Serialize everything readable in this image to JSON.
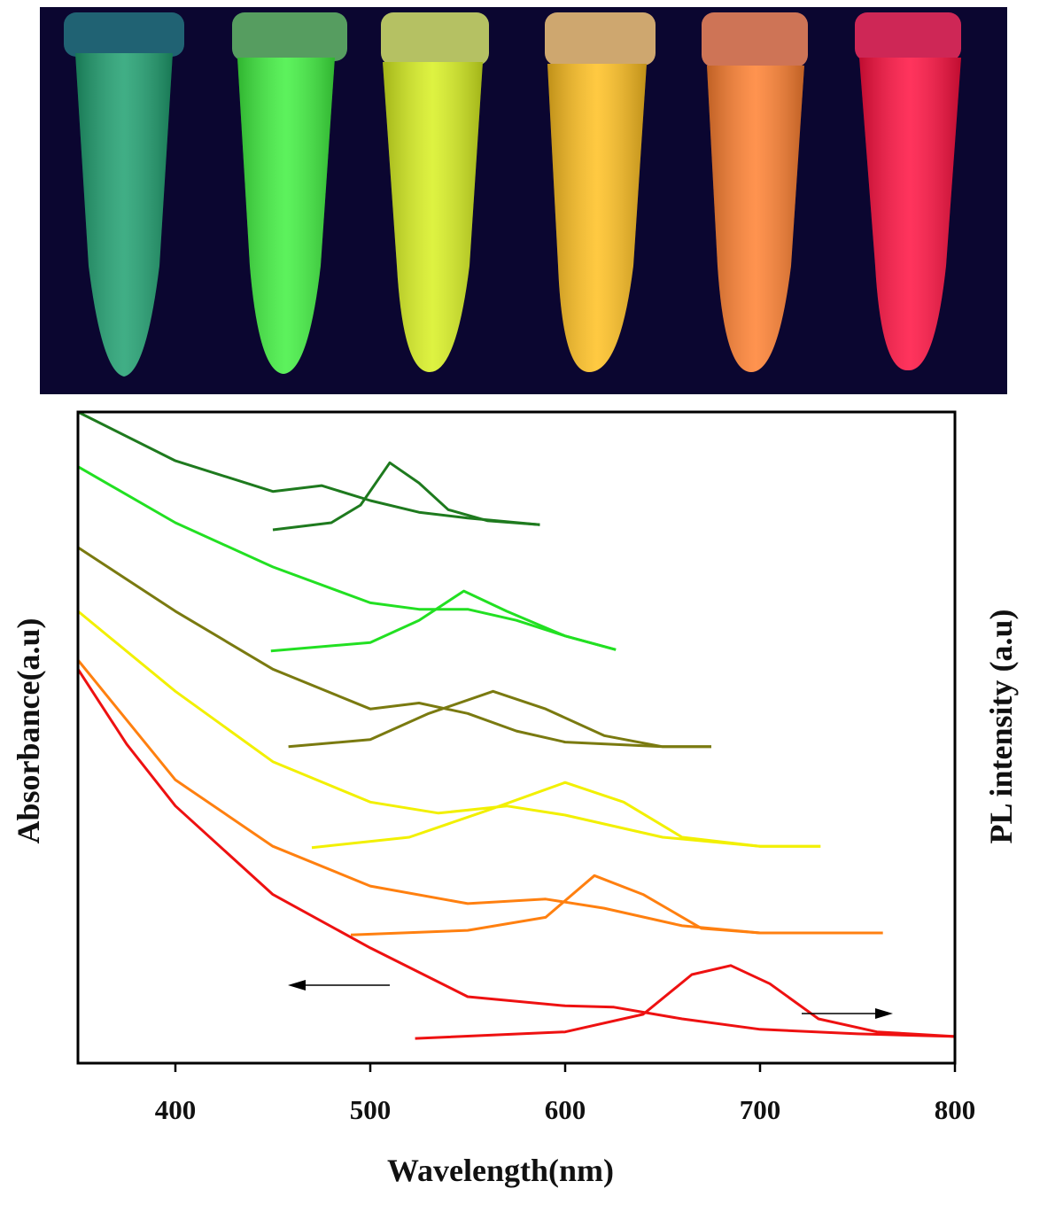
{
  "chart_data": {
    "type": "line",
    "x_label": "Wavelength(nm)",
    "y_label": "Absorbance(a.u)",
    "y2_label": "PL  intensity  (a.u)",
    "xlim": [
      350,
      800
    ],
    "xticks": [
      400,
      500,
      600,
      700,
      800
    ],
    "ylim": [
      0,
      100
    ],
    "series": [
      {
        "color": "#1e7a1e",
        "x": [
          350,
          400,
          450,
          475,
          500,
          525,
          550,
          587
        ],
        "values": [
          100,
          92.5,
          87.8,
          88.7,
          86.4,
          84.6,
          83.7,
          82.7
        ]
      },
      {
        "color": "#1e7a1e",
        "x": [
          450,
          480,
          495,
          510,
          525,
          540,
          560,
          587
        ],
        "values": [
          81.9,
          83,
          85.7,
          92.2,
          89.1,
          85,
          83.3,
          82.7
        ]
      },
      {
        "color": "#22e022",
        "x": [
          350,
          400,
          450,
          500,
          525,
          550,
          575,
          600,
          626
        ],
        "values": [
          91.6,
          83,
          76.2,
          70.7,
          69.7,
          69.7,
          68,
          65.6,
          63.5
        ]
      },
      {
        "color": "#22e022",
        "x": [
          449,
          500,
          525,
          548,
          570,
          600,
          626
        ],
        "values": [
          63.3,
          64.6,
          68,
          72.5,
          69.4,
          65.6,
          63.5
        ]
      },
      {
        "color": "#7a7a10",
        "x": [
          350,
          400,
          450,
          500,
          525,
          550,
          575,
          600,
          650,
          675
        ],
        "values": [
          79.2,
          69.4,
          60.5,
          54.4,
          55.3,
          53.7,
          51,
          49.3,
          48.6,
          48.6
        ]
      },
      {
        "color": "#7a7a10",
        "x": [
          458,
          500,
          530,
          563,
          590,
          620,
          650,
          675
        ],
        "values": [
          48.6,
          49.7,
          53.7,
          57.1,
          54.4,
          50.3,
          48.6,
          48.6
        ]
      },
      {
        "color": "#f2f000",
        "x": [
          350,
          400,
          450,
          500,
          535,
          570,
          600,
          650,
          700,
          731
        ],
        "values": [
          69.4,
          57.1,
          46.3,
          40.1,
          38.4,
          39.5,
          38.1,
          34.7,
          33.3,
          33.3
        ]
      },
      {
        "color": "#f2f000",
        "x": [
          470,
          520,
          560,
          600,
          630,
          660,
          700,
          731
        ],
        "values": [
          33.1,
          34.7,
          38.8,
          43.1,
          40.1,
          34.7,
          33.3,
          33.3
        ]
      },
      {
        "color": "#ff8010",
        "x": [
          350,
          400,
          450,
          500,
          550,
          590,
          620,
          660,
          700,
          763
        ],
        "values": [
          61.9,
          43.5,
          33.3,
          27.2,
          24.5,
          25.2,
          23.8,
          21.1,
          20,
          20
        ]
      },
      {
        "color": "#ff8010",
        "x": [
          490,
          550,
          590,
          615,
          640,
          670,
          700,
          763
        ],
        "values": [
          19.7,
          20.4,
          22.4,
          28.8,
          25.9,
          20.7,
          20,
          20
        ]
      },
      {
        "color": "#ee1111",
        "x": [
          350,
          375,
          400,
          450,
          500,
          550,
          600,
          625,
          660,
          700,
          750,
          800
        ],
        "values": [
          60.5,
          49,
          39.5,
          25.9,
          17.7,
          10.2,
          8.8,
          8.6,
          6.8,
          5.2,
          4.5,
          4.1
        ]
      },
      {
        "color": "#ee1111",
        "x": [
          523,
          600,
          640,
          665,
          685,
          705,
          730,
          760,
          800
        ],
        "values": [
          3.8,
          4.8,
          7.5,
          13.6,
          15,
          12.2,
          6.8,
          4.8,
          4.1
        ]
      }
    ]
  }
}
